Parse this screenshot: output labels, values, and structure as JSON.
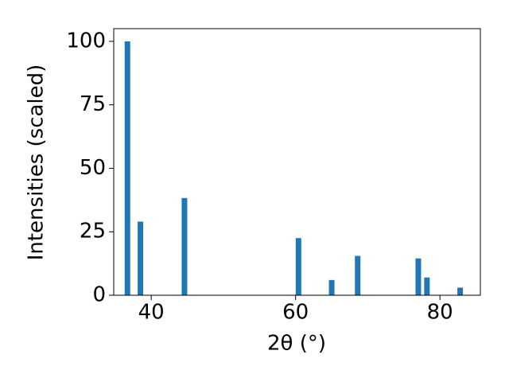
{
  "chart_data": {
    "type": "bar",
    "x_label": "2θ (°)",
    "y_label": "Intensities (scaled)",
    "x": [
      36.7,
      38.5,
      44.6,
      60.4,
      65.0,
      68.6,
      77.0,
      78.2,
      82.8
    ],
    "values": [
      100,
      29,
      38.3,
      22.5,
      6,
      15.5,
      14.5,
      7,
      3
    ],
    "color": "#1f77b4",
    "xlim": [
      34.8,
      85.6
    ],
    "xticks": [
      40,
      60,
      80
    ],
    "ylim": [
      0,
      105
    ],
    "yticks": [
      0,
      25,
      50,
      75,
      100
    ],
    "grid": false
  }
}
